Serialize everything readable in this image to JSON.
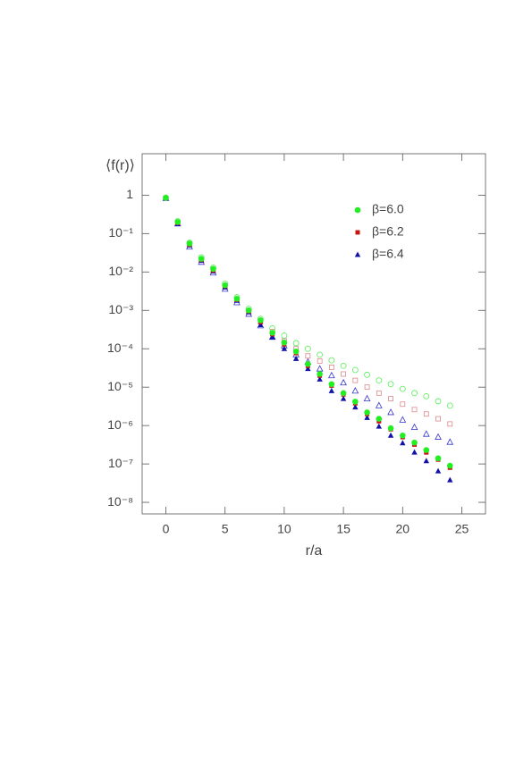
{
  "chart_data": {
    "type": "scatter",
    "ylabel": "⟨f(r)⟩",
    "xlabel": "r/a",
    "log_y": true,
    "legend": "upper right",
    "xlim": [
      -2,
      27
    ],
    "xticks": [
      0,
      5,
      10,
      15,
      20,
      25
    ],
    "ylim": [
      5e-09,
      12
    ],
    "yticks": [
      1,
      {
        "value": 0.1,
        "label": "10⁻¹"
      },
      {
        "value": 0.01,
        "label": "10⁻²"
      },
      {
        "value": 0.001,
        "label": "10⁻³"
      },
      {
        "value": 0.0001,
        "label": "10⁻⁴"
      },
      {
        "value": 1e-05,
        "label": "10⁻⁵"
      },
      {
        "value": 1e-06,
        "label": "10⁻⁶"
      },
      {
        "value": 1e-07,
        "label": "10⁻⁷"
      },
      {
        "value": 1e-08,
        "label": "10⁻⁸"
      }
    ],
    "x": [
      0,
      1,
      2,
      3,
      4,
      5,
      6,
      7,
      8,
      9,
      10,
      11,
      12,
      13,
      14,
      15,
      16,
      17,
      18,
      19,
      20,
      21,
      22,
      23,
      24
    ],
    "series": [
      {
        "name": "β=6.0",
        "color": "#22ee22",
        "marker": "circle",
        "filled": true,
        "values": [
          0.85,
          0.2,
          0.055,
          0.022,
          0.012,
          0.0045,
          0.002,
          0.001,
          0.00055,
          0.00026,
          0.000145,
          8.5e-05,
          4e-05,
          2.2e-05,
          1.2e-05,
          7e-06,
          4.2e-06,
          2.2e-06,
          1.5e-06,
          8.5e-07,
          5.5e-07,
          3.6e-07,
          2.3e-07,
          1.4e-07,
          9e-08
        ]
      },
      {
        "name": "β=6.2",
        "color": "#cc1111",
        "marker": "square",
        "filled": true,
        "values": [
          0.84,
          0.19,
          0.052,
          0.021,
          0.011,
          0.0043,
          0.0019,
          0.00095,
          0.0005,
          0.00024,
          0.00013,
          7.7e-05,
          3.6e-05,
          2e-05,
          1.1e-05,
          6.5e-06,
          3.8e-06,
          2e-06,
          1.3e-06,
          8e-07,
          5e-07,
          3.2e-07,
          2e-07,
          1.3e-07,
          8e-08
        ]
      },
      {
        "name": "β=6.4",
        "color": "#1111aa",
        "marker": "triangle",
        "filled": true,
        "values": [
          0.83,
          0.18,
          0.05,
          0.02,
          0.0105,
          0.004,
          0.0018,
          0.0009,
          0.00042,
          0.0002,
          0.0001,
          5.5e-05,
          3e-05,
          1.6e-05,
          8e-06,
          5e-06,
          3e-06,
          1.6e-06,
          9.5e-07,
          5.5e-07,
          3.5e-07,
          2e-07,
          1.2e-07,
          6.5e-08,
          3.8e-08
        ]
      },
      {
        "color": "#55ee55",
        "marker": "circle",
        "filled": false,
        "values": [
          0.86,
          0.21,
          0.058,
          0.024,
          0.013,
          0.005,
          0.0022,
          0.0011,
          0.0006,
          0.00034,
          0.00022,
          0.00014,
          0.0001,
          7e-05,
          5e-05,
          3.6e-05,
          2.8e-05,
          2.1e-05,
          1.5e-05,
          1.2e-05,
          9e-06,
          7e-06,
          5.8e-06,
          4.3e-06,
          3.3e-06
        ]
      },
      {
        "color": "#dd8888",
        "marker": "square",
        "filled": false,
        "values": [
          0.84,
          0.19,
          0.05,
          0.02,
          0.011,
          0.0042,
          0.0019,
          0.00095,
          0.0005,
          0.00028,
          0.00016,
          0.0001,
          6.5e-05,
          4.8e-05,
          3.3e-05,
          2.2e-05,
          1.5e-05,
          1e-05,
          7e-06,
          5e-06,
          3.6e-06,
          2.6e-06,
          2e-06,
          1.5e-06,
          1.1e-06
        ]
      },
      {
        "color": "#3333cc",
        "marker": "triangle",
        "filled": false,
        "values": [
          0.83,
          0.18,
          0.045,
          0.018,
          0.0095,
          0.0036,
          0.0016,
          0.0008,
          0.0004,
          0.0002,
          0.00012,
          7e-05,
          4.5e-05,
          3e-05,
          2e-05,
          1.3e-05,
          8e-06,
          5e-06,
          3.3e-06,
          2.2e-06,
          1.4e-06,
          9e-07,
          6e-07,
          5e-07,
          3.7e-07
        ]
      }
    ]
  }
}
